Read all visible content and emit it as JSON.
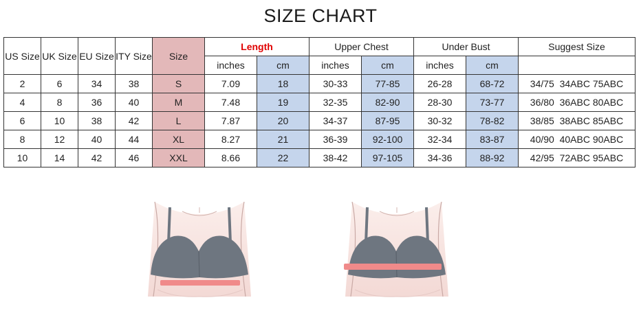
{
  "title": "SIZE CHART",
  "headers": {
    "us_size": "US Size",
    "uk_size": "UK Size",
    "eu_size": "EU Size",
    "ity_size": "ITY Size",
    "size": "Size",
    "length": "Length",
    "upper_chest": "Upper Chest",
    "under_bust": "Under Bust",
    "suggest_size": "Suggest Size",
    "inches": "inches",
    "cm": "cm"
  },
  "rows": [
    {
      "us": "2",
      "uk": "6",
      "eu": "34",
      "ity": "38",
      "size": "S",
      "length_in": "7.09",
      "length_cm": "18",
      "chest_in": "30-33",
      "chest_cm": "77-85",
      "bust_in": "26-28",
      "bust_cm": "68-72",
      "suggest": "34/75  34ABC 75ABC"
    },
    {
      "us": "4",
      "uk": "8",
      "eu": "36",
      "ity": "40",
      "size": "M",
      "length_in": "7.48",
      "length_cm": "19",
      "chest_in": "32-35",
      "chest_cm": "82-90",
      "bust_in": "28-30",
      "bust_cm": "73-77",
      "suggest": "36/80  36ABC 80ABC"
    },
    {
      "us": "6",
      "uk": "10",
      "eu": "38",
      "ity": "42",
      "size": "L",
      "length_in": "7.87",
      "length_cm": "20",
      "chest_in": "34-37",
      "chest_cm": "87-95",
      "bust_in": "30-32",
      "bust_cm": "78-82",
      "suggest": "38/85  38ABC 85ABC"
    },
    {
      "us": "8",
      "uk": "12",
      "eu": "40",
      "ity": "44",
      "size": "XL",
      "length_in": "8.27",
      "length_cm": "21",
      "chest_in": "36-39",
      "chest_cm": "92-100",
      "bust_in": "32-34",
      "bust_cm": "83-87",
      "suggest": "40/90  40ABC 90ABC"
    },
    {
      "us": "10",
      "uk": "14",
      "eu": "42",
      "ity": "46",
      "size": "XXL",
      "length_in": "8.66",
      "length_cm": "22",
      "chest_in": "38-42",
      "chest_cm": "97-105",
      "bust_in": "34-36",
      "bust_cm": "88-92",
      "suggest": "42/95  72ABC 95ABC"
    }
  ],
  "colors": {
    "size_column": "#e3b8b9",
    "cm_column": "#c5d5ec",
    "length_header": "#e00000",
    "measure_band": "#f08a8a",
    "bra_fabric": "#6e7680",
    "skin": "#f7e4e1"
  },
  "illustrations": [
    {
      "name": "under-bust-illustration",
      "icon": "bra-under-bust-measure"
    },
    {
      "name": "upper-chest-illustration",
      "icon": "bra-chest-measure"
    }
  ]
}
